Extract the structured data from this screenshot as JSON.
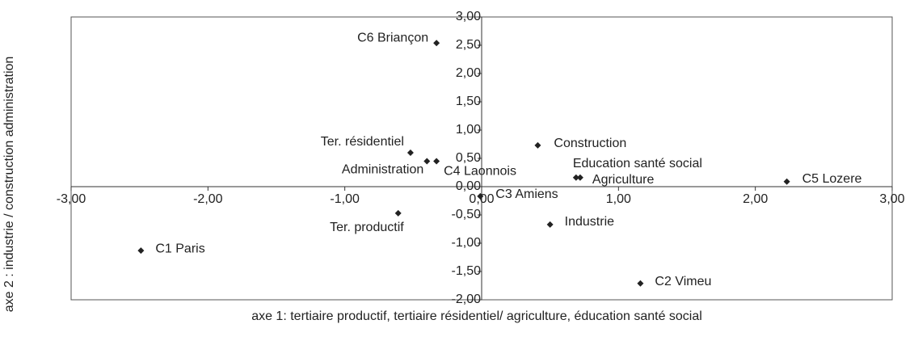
{
  "chart_data": {
    "type": "scatter",
    "xlabel": "axe 1: tertiaire productif, tertiaire résidentiel/ agriculture, éducation santé social",
    "ylabel": "axe 2 : industrie / construction administration",
    "color": "#222222",
    "point_labels": [
      "C6 Briançon",
      "Ter. résidentiel",
      "Administration",
      "C4 Laonnois",
      "Construction",
      "Education santé social",
      "Agriculture",
      "C5 Lozere",
      "C3 Amiens",
      "Ter. productif",
      "Industrie",
      "C1 Paris",
      "C2 Vimeu"
    ],
    "x": [
      -0.33,
      -0.52,
      -0.4,
      -0.33,
      0.41,
      0.69,
      0.72,
      2.23,
      -0.01,
      -0.61,
      0.5,
      -2.49,
      1.16
    ],
    "values": [
      2.54,
      0.6,
      0.45,
      0.45,
      0.73,
      0.16,
      0.16,
      0.09,
      -0.17,
      -0.47,
      -0.67,
      -1.13,
      -1.71
    ],
    "xlim": [
      -3,
      3
    ],
    "ylim": [
      -2,
      3
    ],
    "xticks": [
      {
        "value": -3,
        "label": "-3,00"
      },
      {
        "value": -2,
        "label": "-2,00"
      },
      {
        "value": -1,
        "label": "-1,00"
      },
      {
        "value": 0,
        "label": "0,00"
      },
      {
        "value": 1,
        "label": "1,00"
      },
      {
        "value": 2,
        "label": "2,00"
      },
      {
        "value": 3,
        "label": "3,00"
      }
    ],
    "yticks": [
      {
        "value": -2,
        "label": "-2,00"
      },
      {
        "value": -1.5,
        "label": "-1,50"
      },
      {
        "value": -1,
        "label": "-1,00"
      },
      {
        "value": -0.5,
        "label": "-0,50"
      },
      {
        "value": 0,
        "label": "0,00"
      },
      {
        "value": 0.5,
        "label": "0,50"
      },
      {
        "value": 1,
        "label": "1,00"
      },
      {
        "value": 1.5,
        "label": "1,50"
      },
      {
        "value": 2,
        "label": "2,00"
      },
      {
        "value": 2.5,
        "label": "2,50"
      },
      {
        "value": 3,
        "label": "3,00"
      }
    ]
  }
}
